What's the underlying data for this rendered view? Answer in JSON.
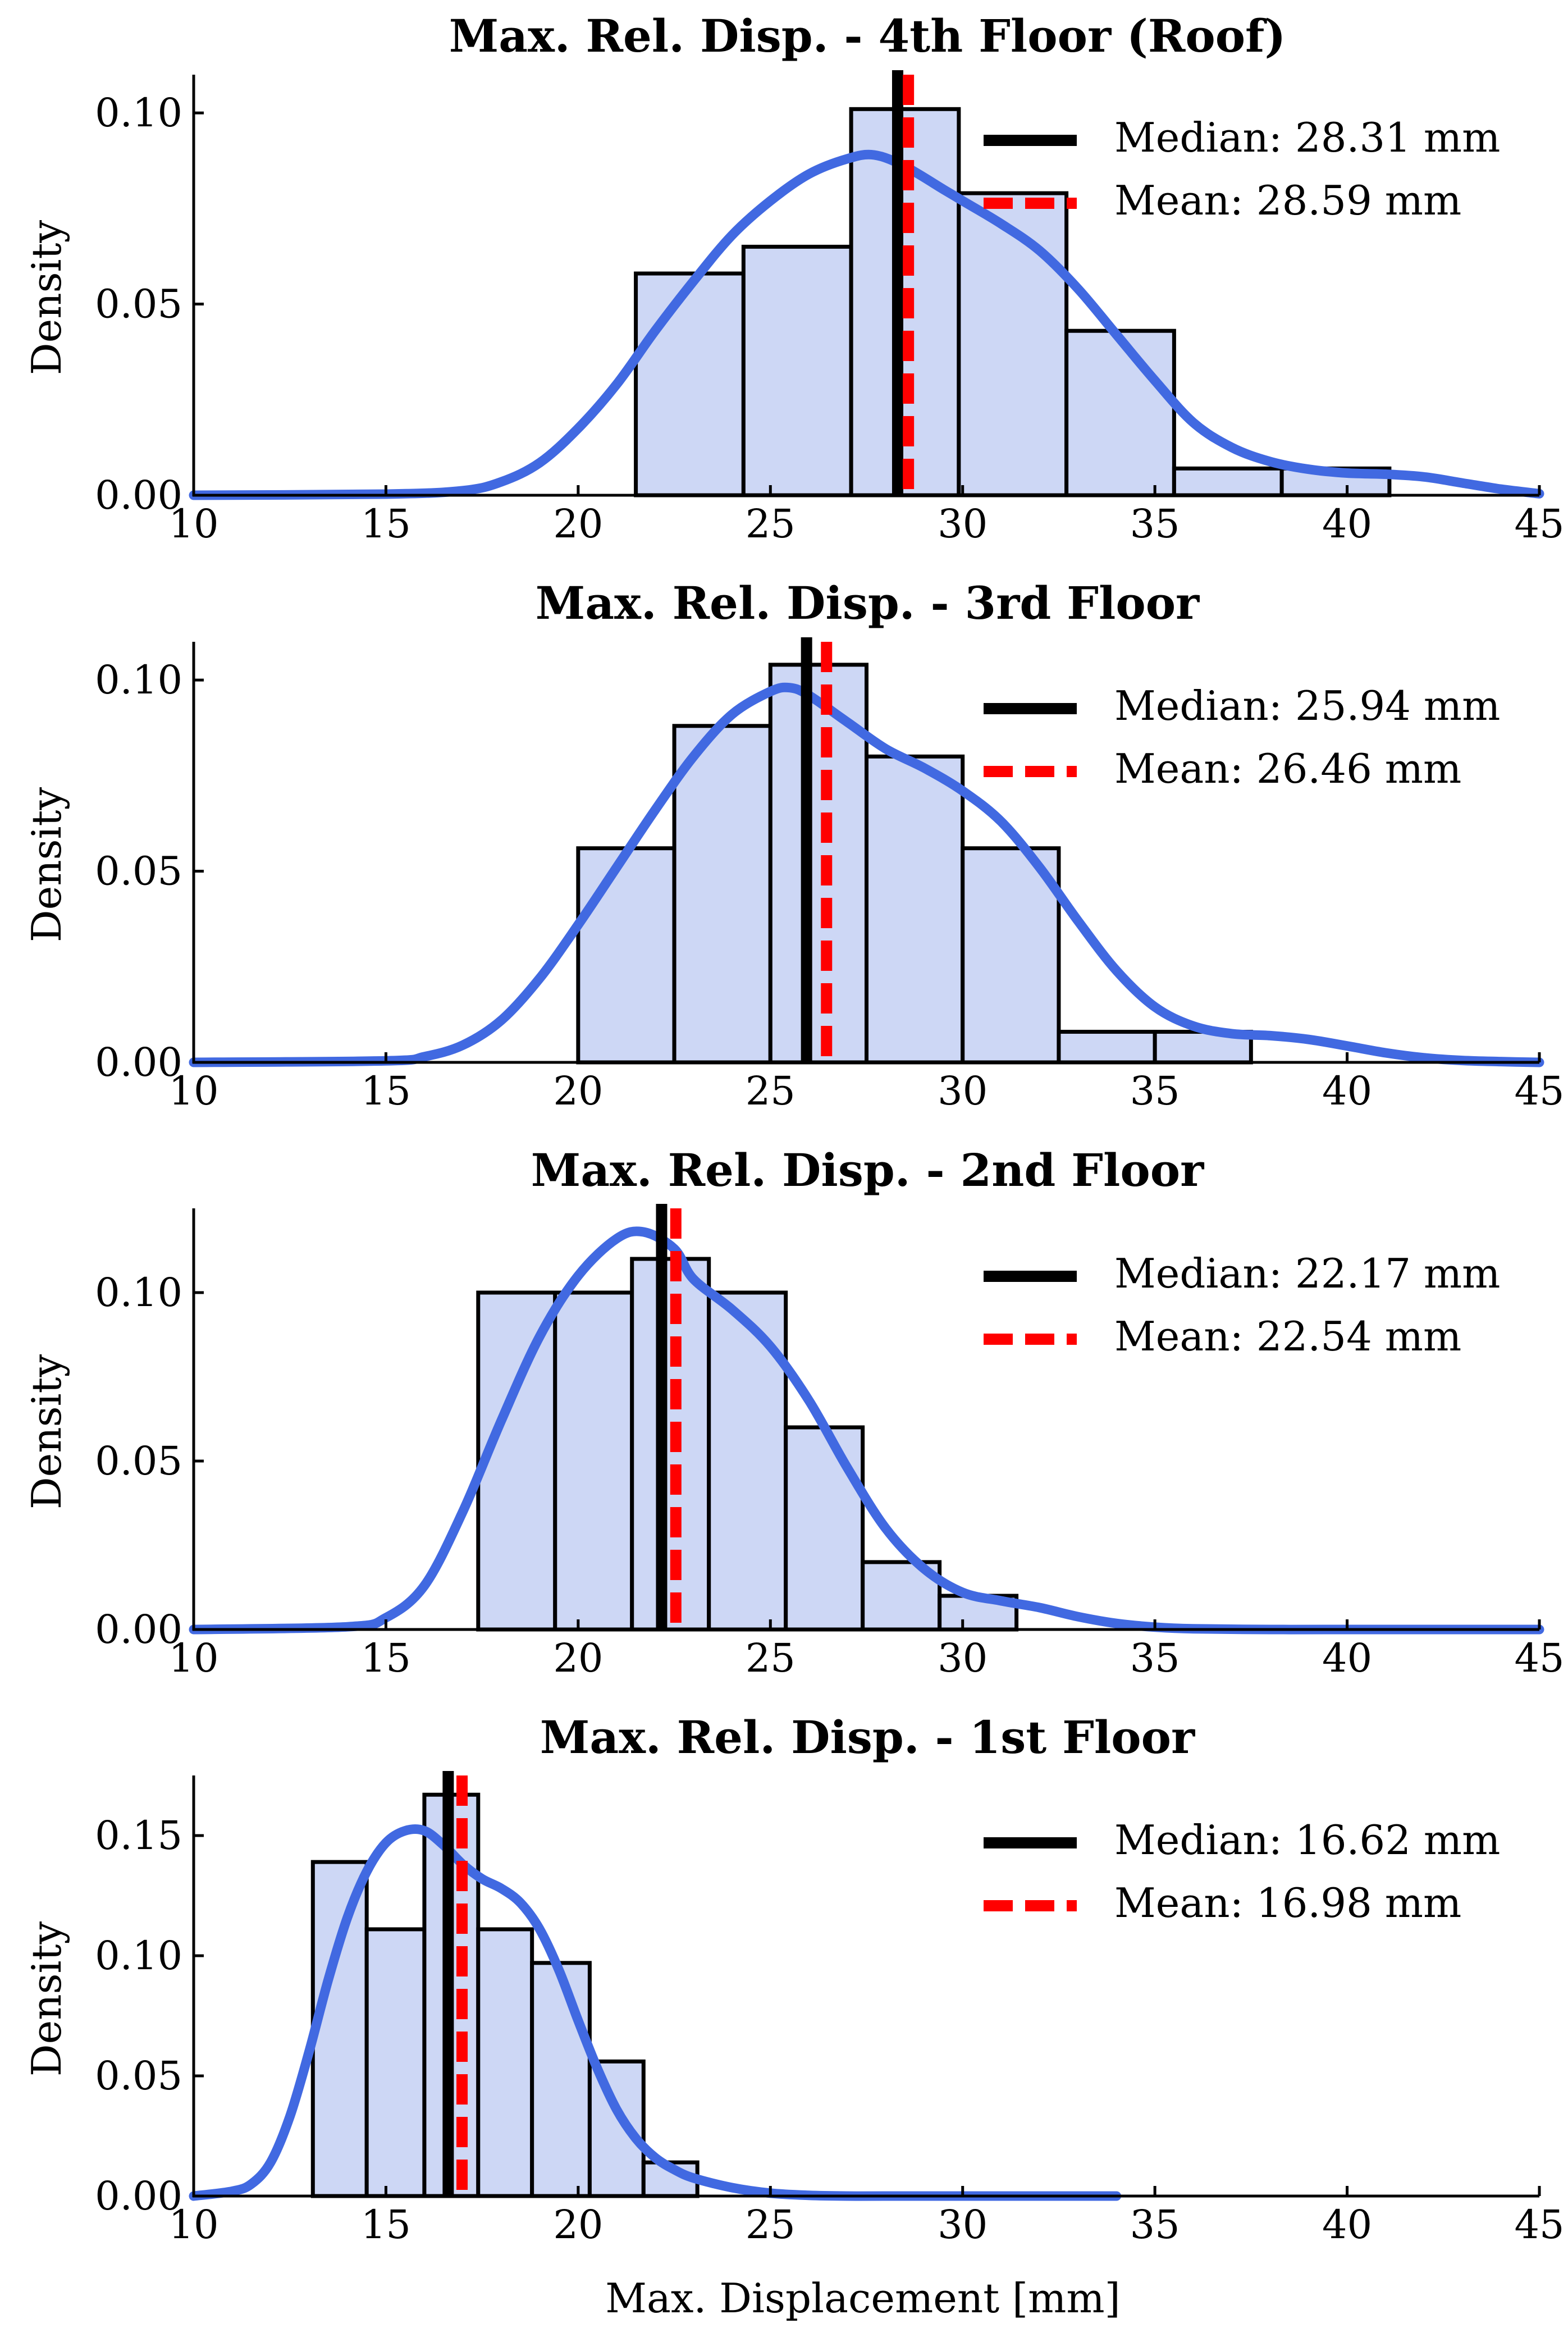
{
  "chart_data": [
    {
      "type": "bar",
      "title": "Max. Rel. Disp. - 4th Floor (Roof)",
      "xlabel": "",
      "ylabel": "Density",
      "xlim": [
        10,
        45
      ],
      "ylim": [
        0,
        0.11
      ],
      "xticks": [
        "10",
        "15",
        "20",
        "25",
        "30",
        "35",
        "40",
        "45"
      ],
      "yticks": [
        "0.00",
        "0.05",
        "0.10"
      ],
      "bin_edges": [
        21.5,
        24.3,
        27.1,
        29.9,
        32.7,
        35.5,
        38.3,
        41.1
      ],
      "values": [
        0.058,
        0.065,
        0.101,
        0.079,
        0.043,
        0.007,
        0.007
      ],
      "kde": {
        "x": [
          10,
          15,
          17,
          18,
          19,
          20,
          21,
          22,
          23,
          24,
          25,
          26,
          27,
          27.7,
          28.5,
          29.5,
          30,
          31,
          32,
          33,
          34,
          35,
          36,
          37,
          38,
          39,
          40,
          41,
          42,
          43,
          44,
          45
        ],
        "y": [
          0,
          0.0003,
          0.0012,
          0.0035,
          0.0085,
          0.0175,
          0.029,
          0.043,
          0.056,
          0.068,
          0.077,
          0.084,
          0.088,
          0.089,
          0.086,
          0.08,
          0.077,
          0.071,
          0.064,
          0.054,
          0.042,
          0.03,
          0.019,
          0.0125,
          0.0088,
          0.0068,
          0.0058,
          0.0055,
          0.0048,
          0.0032,
          0.0016,
          0.0004
        ]
      },
      "median": 28.31,
      "mean": 28.59,
      "legend": {
        "median": "Median: 28.31 mm",
        "mean": "Mean: 28.59 mm",
        "position": "top-right"
      },
      "colors": {
        "bar_fill": "#cdd7f5",
        "bar_edge": "#000000",
        "kde": "#4169e1",
        "median": "#000000",
        "mean": "#ff0000"
      }
    },
    {
      "type": "bar",
      "title": "Max. Rel. Disp. - 3rd Floor",
      "xlabel": "",
      "ylabel": "Density",
      "xlim": [
        10,
        45
      ],
      "ylim": [
        0,
        0.11
      ],
      "xticks": [
        "10",
        "15",
        "20",
        "25",
        "30",
        "35",
        "40",
        "45"
      ],
      "yticks": [
        "0.00",
        "0.05",
        "0.10"
      ],
      "bin_edges": [
        20.0,
        22.5,
        25.0,
        27.5,
        30.0,
        32.5,
        35.0,
        37.5
      ],
      "values": [
        0.056,
        0.088,
        0.104,
        0.08,
        0.056,
        0.008,
        0.008
      ],
      "kde": {
        "x": [
          10,
          15,
          16,
          17,
          18,
          19,
          20,
          21,
          22,
          23,
          24,
          25,
          25.5,
          26,
          27,
          28,
          29,
          30,
          31,
          32,
          33,
          34,
          35,
          36,
          37,
          38,
          39,
          40,
          41,
          42,
          43,
          44,
          45
        ],
        "y": [
          0,
          0.0004,
          0.0015,
          0.0045,
          0.011,
          0.022,
          0.036,
          0.051,
          0.066,
          0.08,
          0.091,
          0.097,
          0.098,
          0.096,
          0.089,
          0.082,
          0.077,
          0.071,
          0.063,
          0.051,
          0.037,
          0.024,
          0.0145,
          0.0095,
          0.0075,
          0.007,
          0.006,
          0.0043,
          0.0025,
          0.0012,
          0.0005,
          0.0002,
          0
        ]
      },
      "median": 25.94,
      "mean": 26.46,
      "legend": {
        "median": "Median: 25.94 mm",
        "mean": "Mean: 26.46 mm",
        "position": "top-right"
      },
      "colors": {
        "bar_fill": "#cdd7f5",
        "bar_edge": "#000000",
        "kde": "#4169e1",
        "median": "#000000",
        "mean": "#ff0000"
      }
    },
    {
      "type": "bar",
      "title": "Max. Rel. Disp. - 2nd Floor",
      "xlabel": "",
      "ylabel": "Density",
      "xlim": [
        10,
        45
      ],
      "ylim": [
        0,
        0.125
      ],
      "xticks": [
        "10",
        "15",
        "20",
        "25",
        "30",
        "35",
        "40",
        "45"
      ],
      "yticks": [
        "0.00",
        "0.05",
        "0.10"
      ],
      "bin_edges": [
        17.4,
        19.4,
        21.4,
        23.4,
        25.4,
        27.4,
        29.4,
        31.4
      ],
      "values": [
        0.1,
        0.1,
        0.11,
        0.1,
        0.06,
        0.02,
        0.01
      ],
      "kde": {
        "x": [
          10,
          14,
          15,
          16,
          17,
          18,
          19,
          20,
          21,
          21.7,
          22.5,
          23,
          24,
          25,
          26,
          27,
          28,
          29,
          30,
          31,
          32,
          33,
          34,
          35,
          36,
          38,
          40,
          42,
          45
        ],
        "y": [
          0,
          0.0008,
          0.0035,
          0.013,
          0.035,
          0.062,
          0.087,
          0.105,
          0.116,
          0.118,
          0.113,
          0.104,
          0.095,
          0.084,
          0.068,
          0.048,
          0.03,
          0.018,
          0.011,
          0.0085,
          0.0065,
          0.0038,
          0.0018,
          0.0007,
          0.0002,
          0,
          0,
          0,
          0
        ]
      },
      "median": 22.17,
      "mean": 22.54,
      "legend": {
        "median": "Median: 22.17 mm",
        "mean": "Mean: 22.54 mm",
        "position": "top-right"
      },
      "colors": {
        "bar_fill": "#cdd7f5",
        "bar_edge": "#000000",
        "kde": "#4169e1",
        "median": "#000000",
        "mean": "#ff0000"
      }
    },
    {
      "type": "bar",
      "title": "Max. Rel. Disp. - 1st Floor",
      "xlabel": "Max. Displacement [mm]",
      "ylabel": "Density",
      "xlim": [
        10,
        45
      ],
      "ylim": [
        0,
        0.175
      ],
      "xticks": [
        "10",
        "15",
        "20",
        "25",
        "30",
        "35",
        "40",
        "45"
      ],
      "yticks": [
        "0.00",
        "0.05",
        "0.10",
        "0.15"
      ],
      "bin_edges": [
        13.1,
        14.5,
        16.0,
        17.4,
        18.8,
        20.3,
        21.7,
        23.1
      ],
      "values": [
        0.139,
        0.111,
        0.167,
        0.111,
        0.097,
        0.056,
        0.014
      ],
      "kde": {
        "x": [
          10,
          11,
          11.5,
          12,
          12.5,
          13,
          13.5,
          14,
          14.5,
          15,
          15.5,
          16,
          16.5,
          17,
          17.5,
          18,
          18.5,
          19,
          19.5,
          20,
          20.5,
          21,
          21.5,
          22,
          22.5,
          23,
          24,
          25,
          26,
          27,
          28,
          30,
          32,
          34
        ],
        "y": [
          0,
          0.002,
          0.005,
          0.014,
          0.033,
          0.06,
          0.09,
          0.116,
          0.135,
          0.147,
          0.152,
          0.152,
          0.146,
          0.138,
          0.132,
          0.128,
          0.122,
          0.111,
          0.094,
          0.073,
          0.053,
          0.036,
          0.024,
          0.016,
          0.011,
          0.0075,
          0.0035,
          0.0012,
          0.0003,
          0,
          0,
          0,
          0,
          0
        ]
      },
      "median": 16.62,
      "mean": 16.98,
      "legend": {
        "median": "Median: 16.62 mm",
        "mean": "Mean: 16.98 mm",
        "position": "top-right"
      },
      "colors": {
        "bar_fill": "#cdd7f5",
        "bar_edge": "#000000",
        "kde": "#4169e1",
        "median": "#000000",
        "mean": "#ff0000"
      }
    }
  ]
}
